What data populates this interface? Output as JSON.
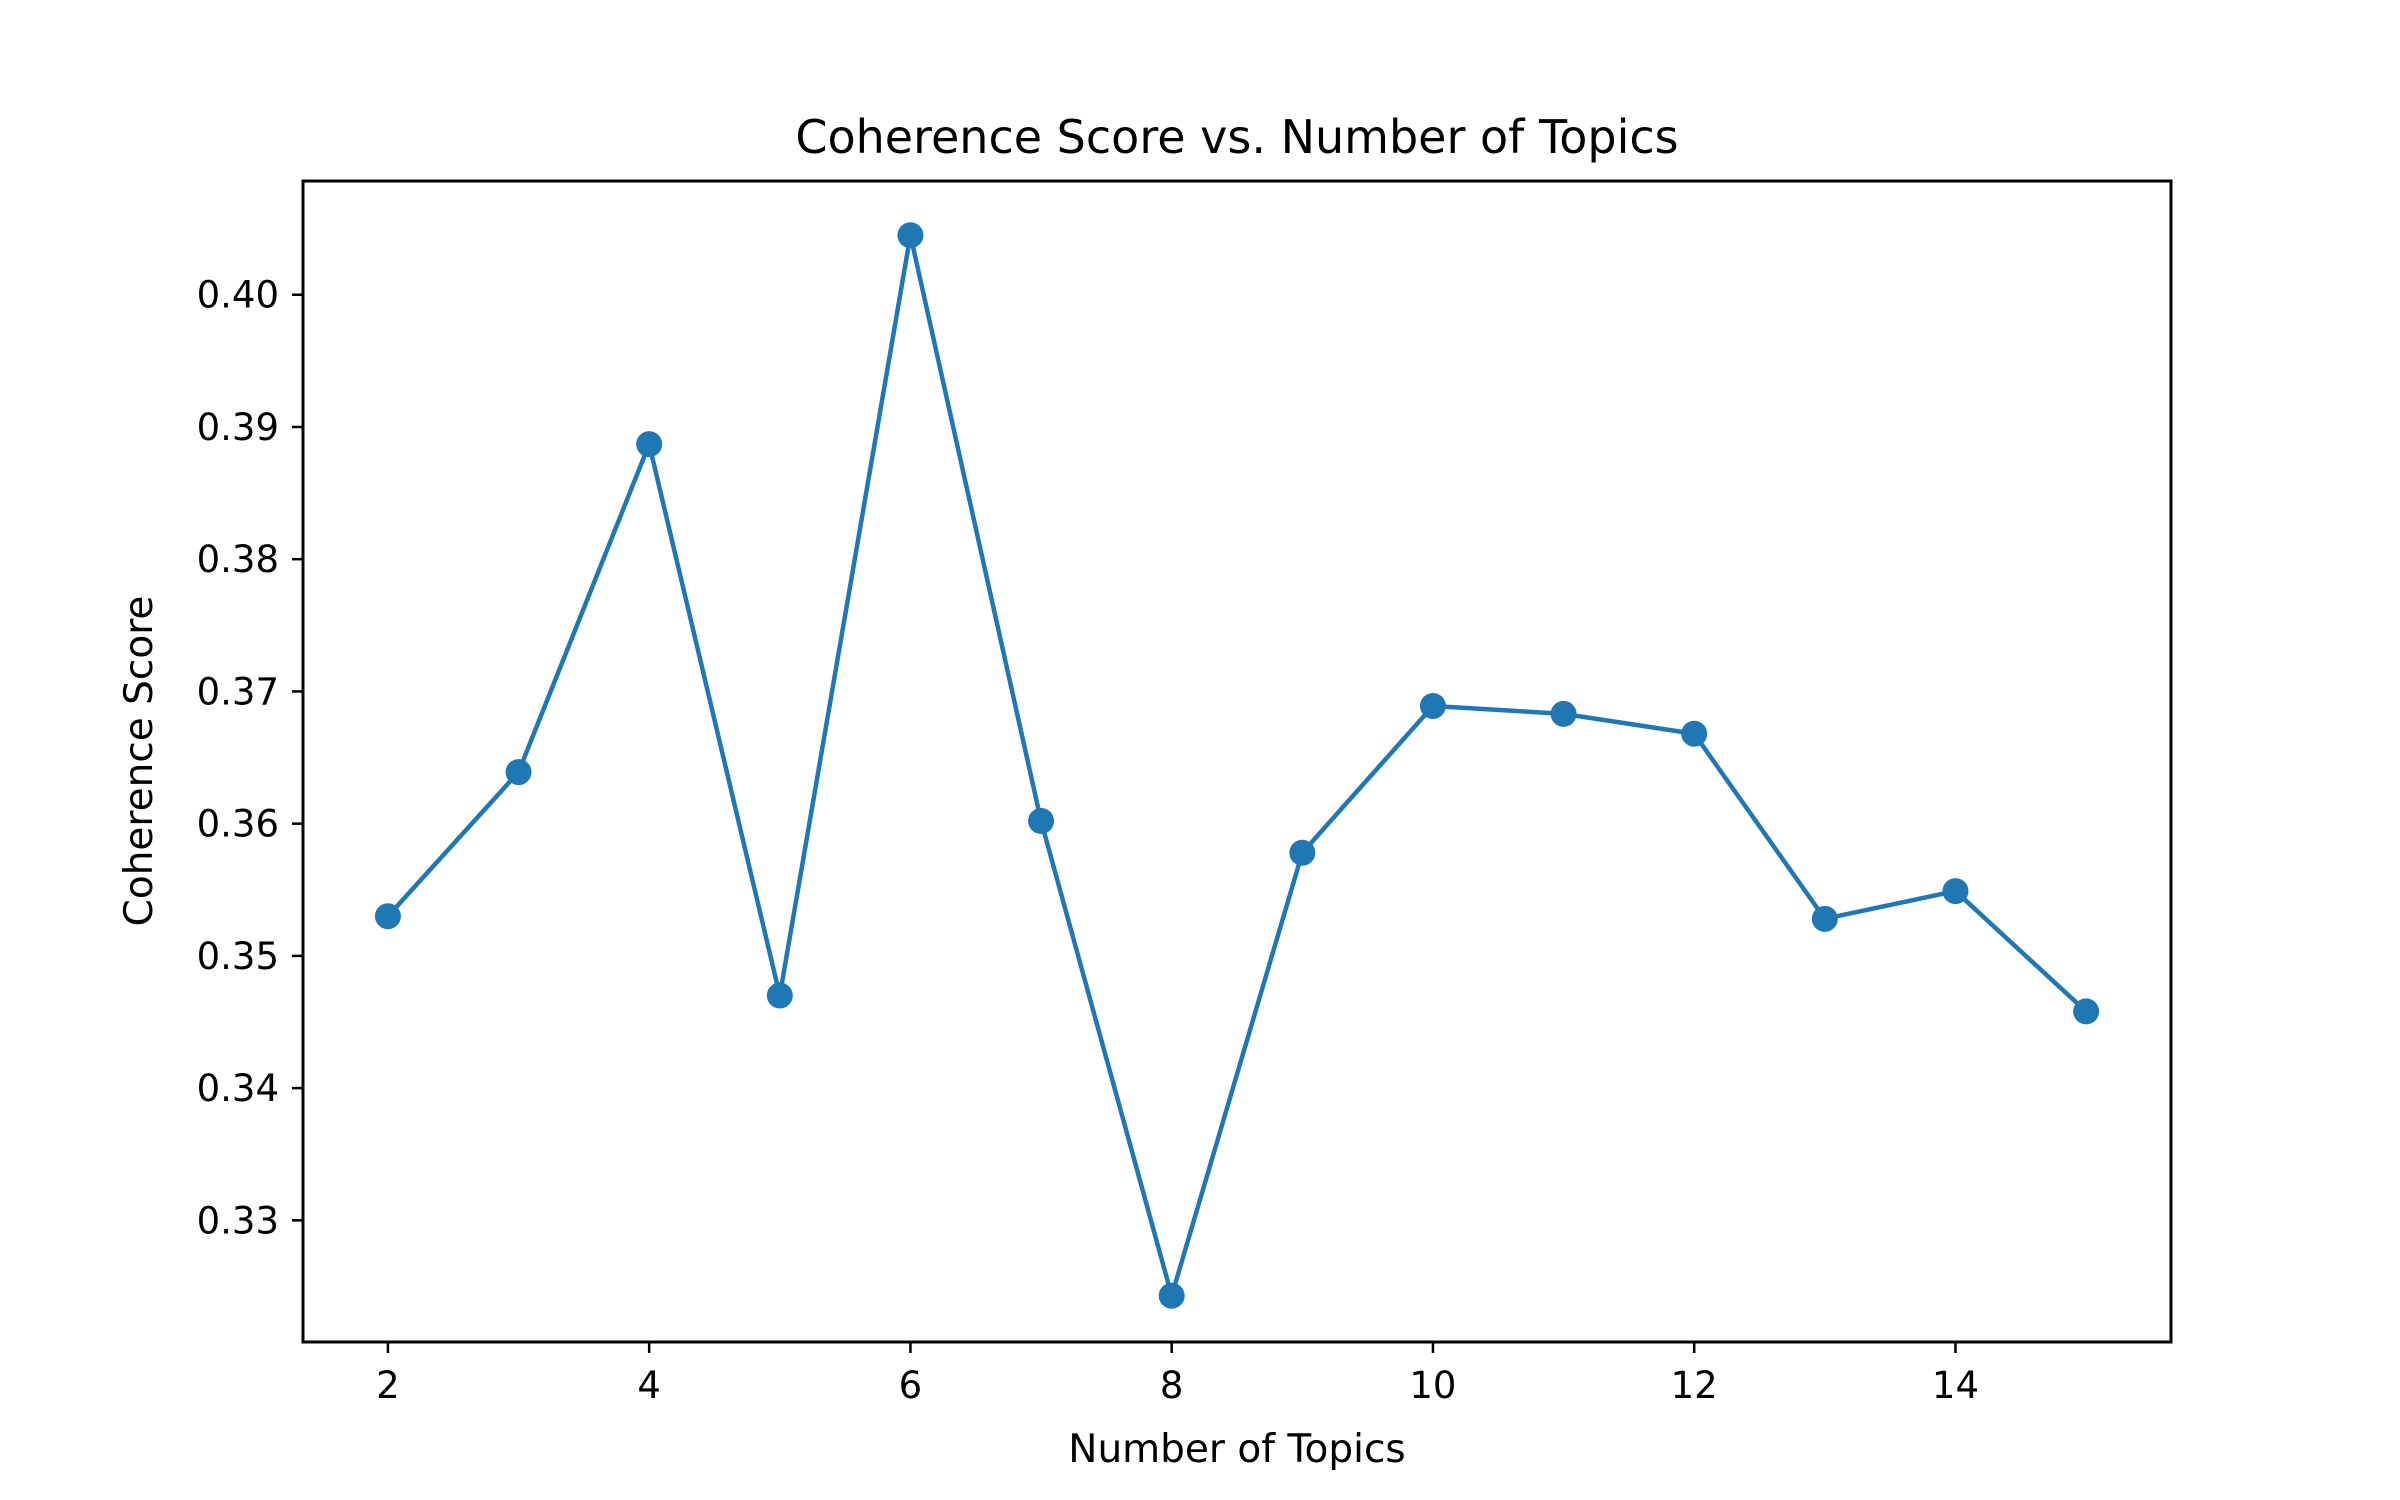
{
  "chart_data": {
    "type": "line",
    "title": "Coherence Score vs. Number of Topics",
    "xlabel": "Number of Topics",
    "ylabel": "Coherence Score",
    "xlim": [
      1.35,
      15.65
    ],
    "ylim": [
      0.3208,
      0.4086
    ],
    "xticks": [
      2,
      4,
      6,
      8,
      10,
      12,
      14
    ],
    "xtick_labels": [
      "2",
      "4",
      "6",
      "8",
      "10",
      "12",
      "14"
    ],
    "yticks": [
      0.33,
      0.34,
      0.35,
      0.36,
      0.37,
      0.38,
      0.39,
      0.4
    ],
    "ytick_labels": [
      "0.33",
      "0.34",
      "0.35",
      "0.36",
      "0.37",
      "0.38",
      "0.39",
      "0.40"
    ],
    "grid": false,
    "marker": "circle",
    "series_color": "#1f77b4",
    "x": [
      2,
      3,
      4,
      5,
      6,
      7,
      8,
      9,
      10,
      11,
      12,
      13,
      14,
      15
    ],
    "y": [
      0.353,
      0.3639,
      0.3887,
      0.347,
      0.4045,
      0.3602,
      0.3243,
      0.3578,
      0.3689,
      0.3683,
      0.3668,
      0.3528,
      0.3549,
      0.3458
    ]
  }
}
